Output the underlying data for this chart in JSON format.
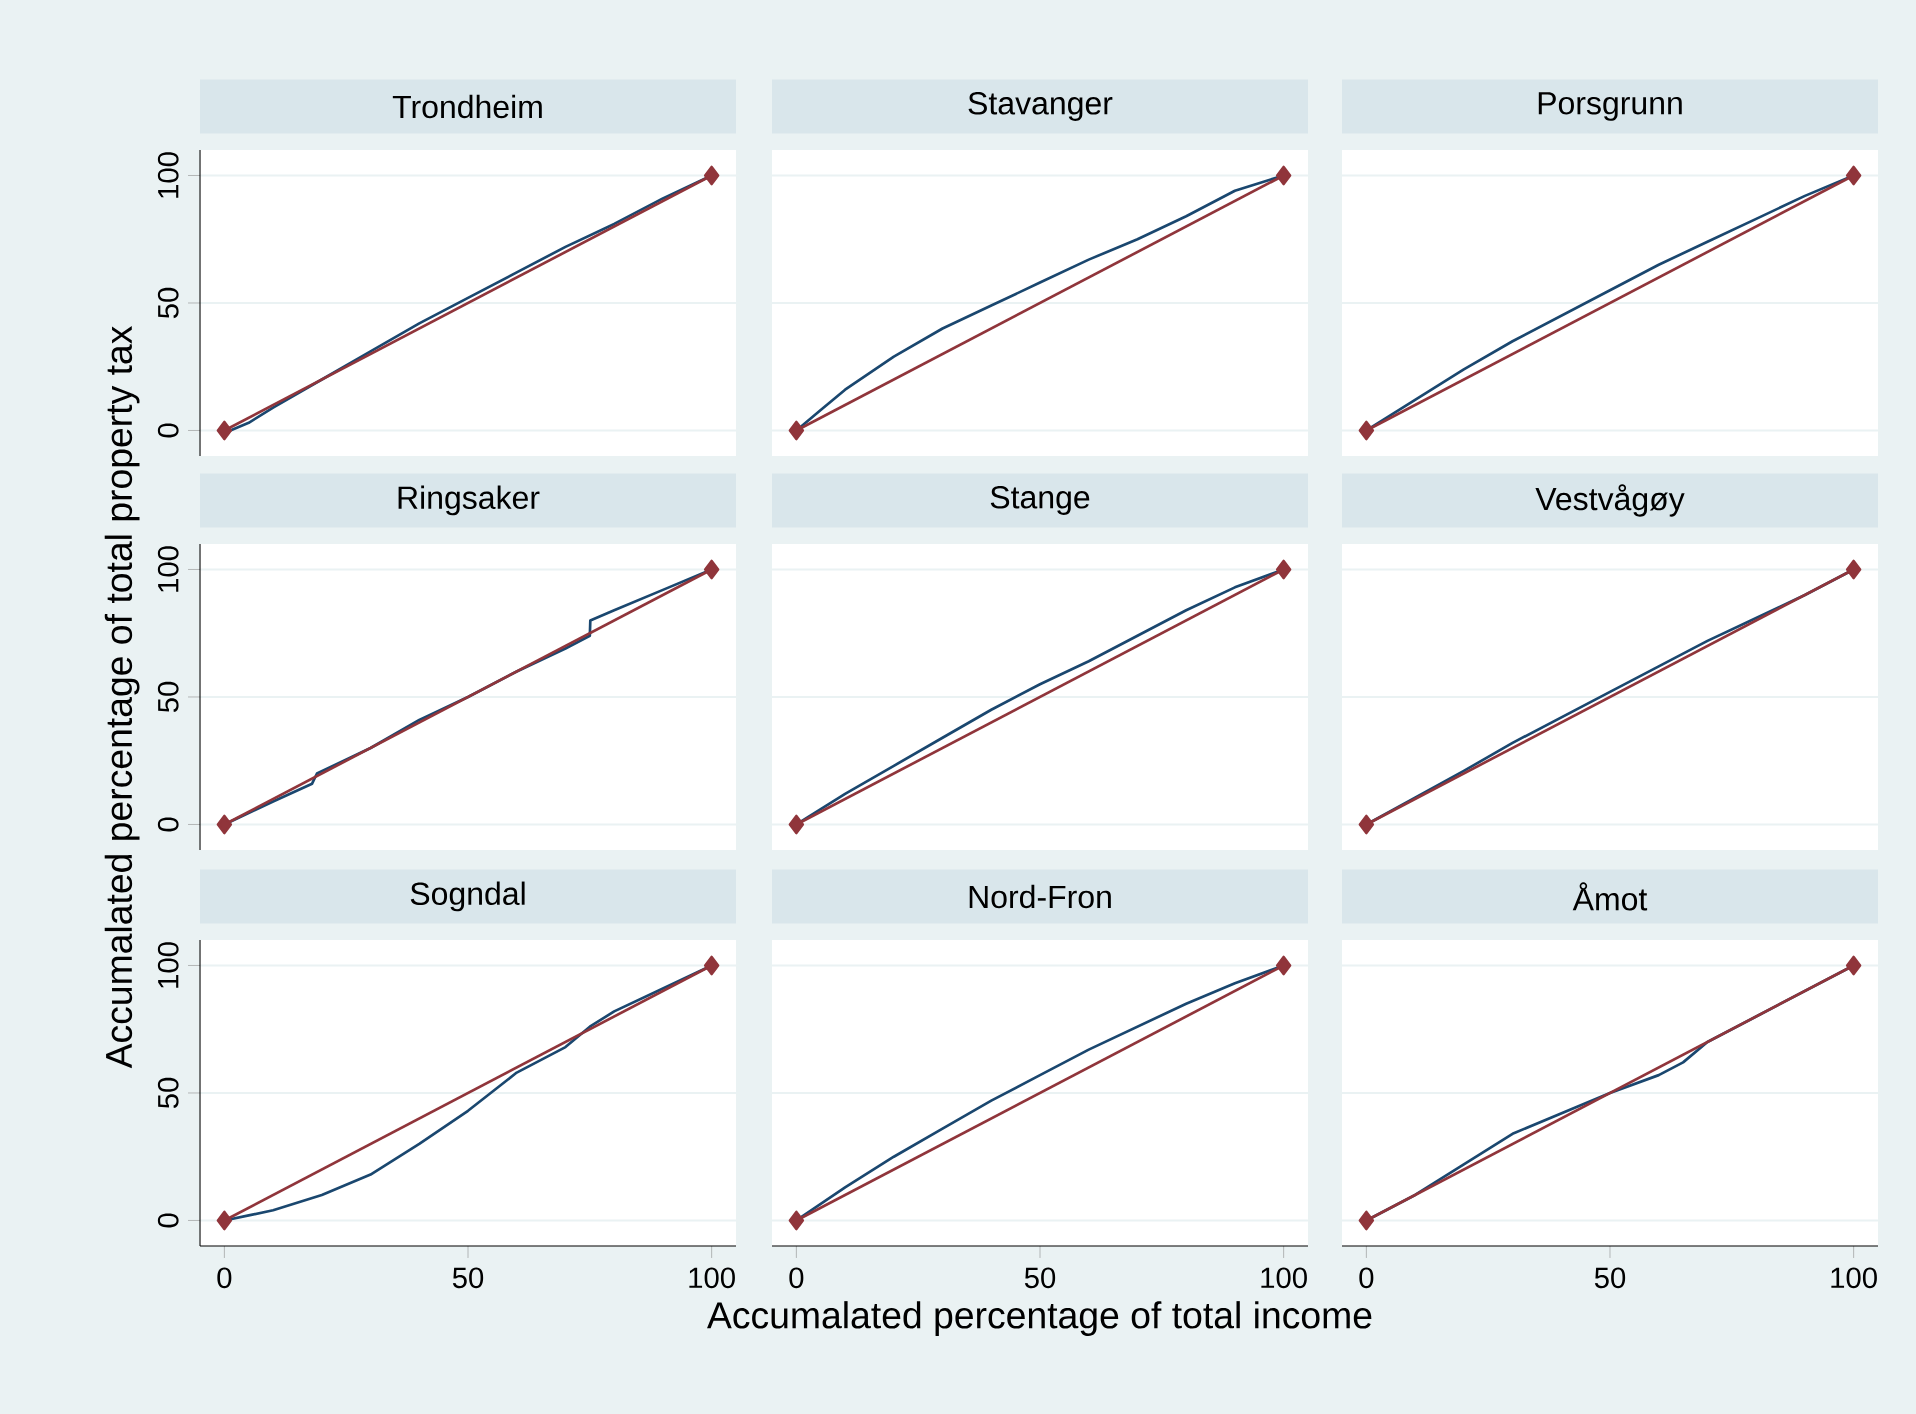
{
  "chart_data": [
    {
      "type": "line",
      "title": "Trondheim",
      "xlim": [
        -5,
        105
      ],
      "ylim": [
        -10,
        110
      ],
      "xticks": [
        0,
        50,
        100
      ],
      "yticks": [
        0,
        50,
        100
      ],
      "grid": "y",
      "tick_labels": "y",
      "series": [
        {
          "color": "#1a476f",
          "x": [
            0,
            5,
            10,
            20,
            30,
            40,
            50,
            60,
            70,
            80,
            90,
            100
          ],
          "values": [
            -1,
            3,
            9,
            20,
            31,
            42,
            52,
            62,
            72,
            81,
            91,
            100
          ]
        },
        {
          "color": "#90353b",
          "marker": "diamond",
          "x": [
            0,
            100
          ],
          "values": [
            0,
            100
          ]
        }
      ]
    },
    {
      "type": "line",
      "title": "Stavanger",
      "xlim": [
        -5,
        105
      ],
      "ylim": [
        -10,
        110
      ],
      "xticks": [
        0,
        50,
        100
      ],
      "yticks": [
        0,
        50,
        100
      ],
      "grid": "y",
      "tick_labels": false,
      "series": [
        {
          "color": "#1a476f",
          "x": [
            0,
            5,
            10,
            20,
            30,
            40,
            50,
            60,
            70,
            80,
            90,
            100
          ],
          "values": [
            0,
            8,
            16,
            29,
            40,
            49,
            58,
            67,
            75,
            84,
            94,
            100
          ]
        },
        {
          "color": "#90353b",
          "marker": "diamond",
          "x": [
            0,
            100
          ],
          "values": [
            0,
            100
          ]
        }
      ]
    },
    {
      "type": "line",
      "title": "Porsgrunn",
      "xlim": [
        -5,
        105
      ],
      "ylim": [
        -10,
        110
      ],
      "xticks": [
        0,
        50,
        100
      ],
      "yticks": [
        0,
        50,
        100
      ],
      "grid": "y",
      "tick_labels": false,
      "series": [
        {
          "color": "#1a476f",
          "x": [
            0,
            10,
            20,
            30,
            40,
            50,
            60,
            70,
            80,
            90,
            100
          ],
          "values": [
            0,
            12,
            24,
            35,
            45,
            55,
            65,
            74,
            83,
            92,
            100
          ]
        },
        {
          "color": "#90353b",
          "marker": "diamond",
          "x": [
            0,
            100
          ],
          "values": [
            0,
            100
          ]
        }
      ]
    },
    {
      "type": "line",
      "title": "Ringsaker",
      "ylabel": "Accumalated percentage of total property tax",
      "xlim": [
        -5,
        105
      ],
      "ylim": [
        -10,
        110
      ],
      "xticks": [
        0,
        50,
        100
      ],
      "yticks": [
        0,
        50,
        100
      ],
      "grid": "y",
      "tick_labels": "y",
      "series": [
        {
          "color": "#1a476f",
          "x": [
            0,
            10,
            18,
            19,
            30,
            40,
            50,
            60,
            70,
            75,
            75.1,
            80,
            90,
            100
          ],
          "values": [
            0,
            9,
            16,
            20,
            30,
            41,
            50,
            60,
            69,
            74,
            80,
            84,
            92,
            100
          ]
        },
        {
          "color": "#90353b",
          "marker": "diamond",
          "x": [
            0,
            100
          ],
          "values": [
            0,
            100
          ]
        }
      ]
    },
    {
      "type": "line",
      "title": "Stange",
      "xlim": [
        -5,
        105
      ],
      "ylim": [
        -10,
        110
      ],
      "xticks": [
        0,
        50,
        100
      ],
      "yticks": [
        0,
        50,
        100
      ],
      "grid": "y",
      "tick_labels": false,
      "series": [
        {
          "color": "#1a476f",
          "x": [
            0,
            10,
            20,
            30,
            40,
            50,
            60,
            70,
            80,
            90,
            100
          ],
          "values": [
            0,
            12,
            23,
            34,
            45,
            55,
            64,
            74,
            84,
            93,
            100
          ]
        },
        {
          "color": "#90353b",
          "marker": "diamond",
          "x": [
            0,
            100
          ],
          "values": [
            0,
            100
          ]
        }
      ]
    },
    {
      "type": "line",
      "title": "Vestvågøy",
      "xlim": [
        -5,
        105
      ],
      "ylim": [
        -10,
        110
      ],
      "xticks": [
        0,
        50,
        100
      ],
      "yticks": [
        0,
        50,
        100
      ],
      "grid": "y",
      "tick_labels": false,
      "series": [
        {
          "color": "#1a476f",
          "x": [
            0,
            10,
            20,
            30,
            40,
            50,
            60,
            70,
            80,
            90,
            100
          ],
          "values": [
            0,
            10.5,
            21,
            32,
            42,
            52,
            62,
            72,
            81,
            90,
            100
          ]
        },
        {
          "color": "#90353b",
          "marker": "diamond",
          "x": [
            0,
            100
          ],
          "values": [
            0,
            100
          ]
        }
      ]
    },
    {
      "type": "line",
      "title": "Sogndal",
      "xlim": [
        -5,
        105
      ],
      "ylim": [
        -10,
        110
      ],
      "xticks": [
        0,
        50,
        100
      ],
      "yticks": [
        0,
        50,
        100
      ],
      "grid": "y",
      "series": [
        {
          "color": "#1a476f",
          "x": [
            0,
            5,
            10,
            20,
            30,
            40,
            50,
            60,
            70,
            75,
            80,
            90,
            100
          ],
          "values": [
            0,
            2,
            4,
            10,
            18,
            30,
            43,
            58,
            68,
            76,
            82,
            91,
            100
          ]
        },
        {
          "color": "#90353b",
          "marker": "diamond",
          "x": [
            0,
            100
          ],
          "values": [
            0,
            100
          ]
        }
      ]
    },
    {
      "type": "line",
      "title": "Nord-Fron",
      "xlabel": "Accumalated percentage of total income",
      "xlim": [
        -5,
        105
      ],
      "ylim": [
        -10,
        110
      ],
      "xticks": [
        0,
        50,
        100
      ],
      "yticks": [
        0,
        50,
        100
      ],
      "grid": "y",
      "tick_labels": "x",
      "series": [
        {
          "color": "#1a476f",
          "x": [
            0,
            10,
            20,
            30,
            40,
            50,
            60,
            70,
            80,
            90,
            100
          ],
          "values": [
            0,
            13,
            25,
            36,
            47,
            57,
            67,
            76,
            85,
            93,
            100
          ]
        },
        {
          "color": "#90353b",
          "marker": "diamond",
          "x": [
            0,
            100
          ],
          "values": [
            0,
            100
          ]
        }
      ]
    },
    {
      "type": "line",
      "title": "Åmot",
      "xlim": [
        -5,
        105
      ],
      "ylim": [
        -10,
        110
      ],
      "xticks": [
        0,
        50,
        100
      ],
      "yticks": [
        0,
        50,
        100
      ],
      "grid": "y",
      "tick_labels": "x",
      "series": [
        {
          "color": "#1a476f",
          "x": [
            0,
            10,
            20,
            30,
            40,
            50,
            60,
            65,
            70,
            80,
            90,
            100
          ],
          "values": [
            0,
            10,
            22,
            34,
            42,
            50,
            57,
            62,
            70,
            80,
            90,
            100
          ]
        },
        {
          "color": "#90353b",
          "marker": "diamond",
          "x": [
            0,
            100
          ],
          "values": [
            0,
            100
          ]
        }
      ]
    }
  ]
}
